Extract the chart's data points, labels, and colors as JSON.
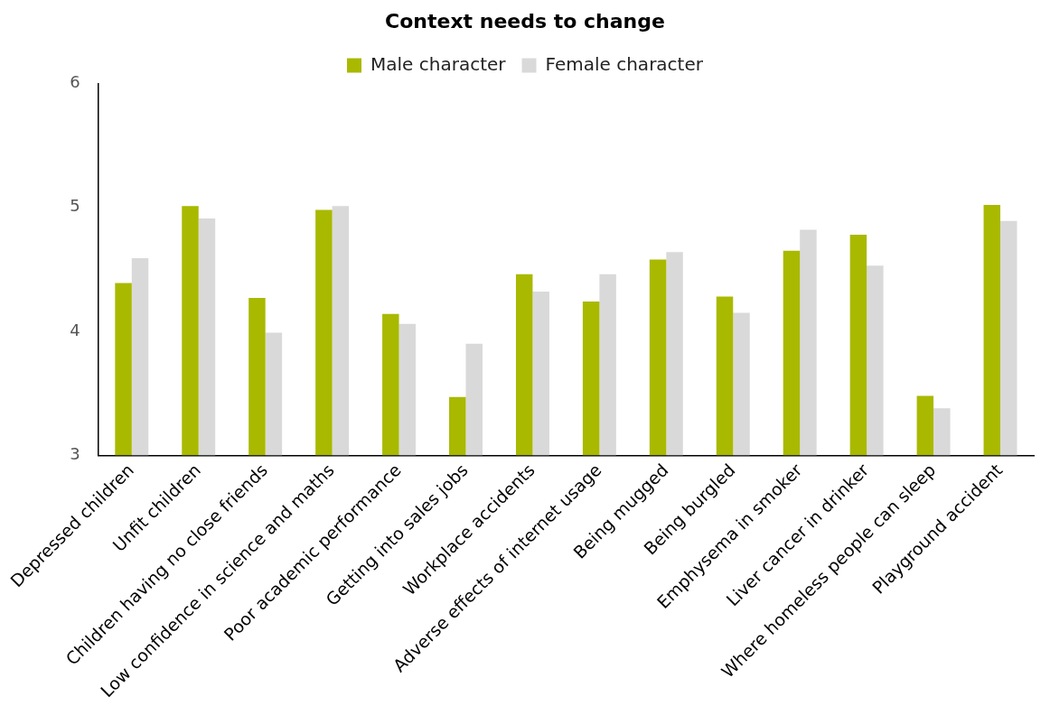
{
  "chart_data": {
    "type": "bar",
    "title": "Context needs to change",
    "categories": [
      "Depressed children",
      "Unfit children",
      "Children having no close friends",
      "Low confidence in science and maths",
      "Poor academic performance",
      "Getting into sales jobs",
      "Workplace accidents",
      "Adverse effects of internet usage",
      "Being mugged",
      "Being burgled",
      "Emphysema in smoker",
      "Liver cancer in drinker",
      "Where homeless people can sleep",
      "Playground accident"
    ],
    "series": [
      {
        "name": "Male character",
        "color": "#a9b900",
        "values": [
          4.39,
          5.01,
          4.27,
          4.98,
          4.14,
          3.47,
          4.46,
          4.24,
          4.58,
          4.28,
          4.65,
          4.78,
          3.48,
          5.02
        ]
      },
      {
        "name": "Female character",
        "color": "#d9d9d9",
        "values": [
          4.59,
          4.91,
          3.99,
          5.01,
          4.06,
          3.9,
          4.32,
          4.46,
          4.64,
          4.15,
          4.82,
          4.53,
          3.38,
          4.89
        ]
      }
    ],
    "ylim": [
      3,
      6
    ],
    "yticks": [
      3,
      4,
      5,
      6
    ],
    "grid": false,
    "legend": "top"
  }
}
